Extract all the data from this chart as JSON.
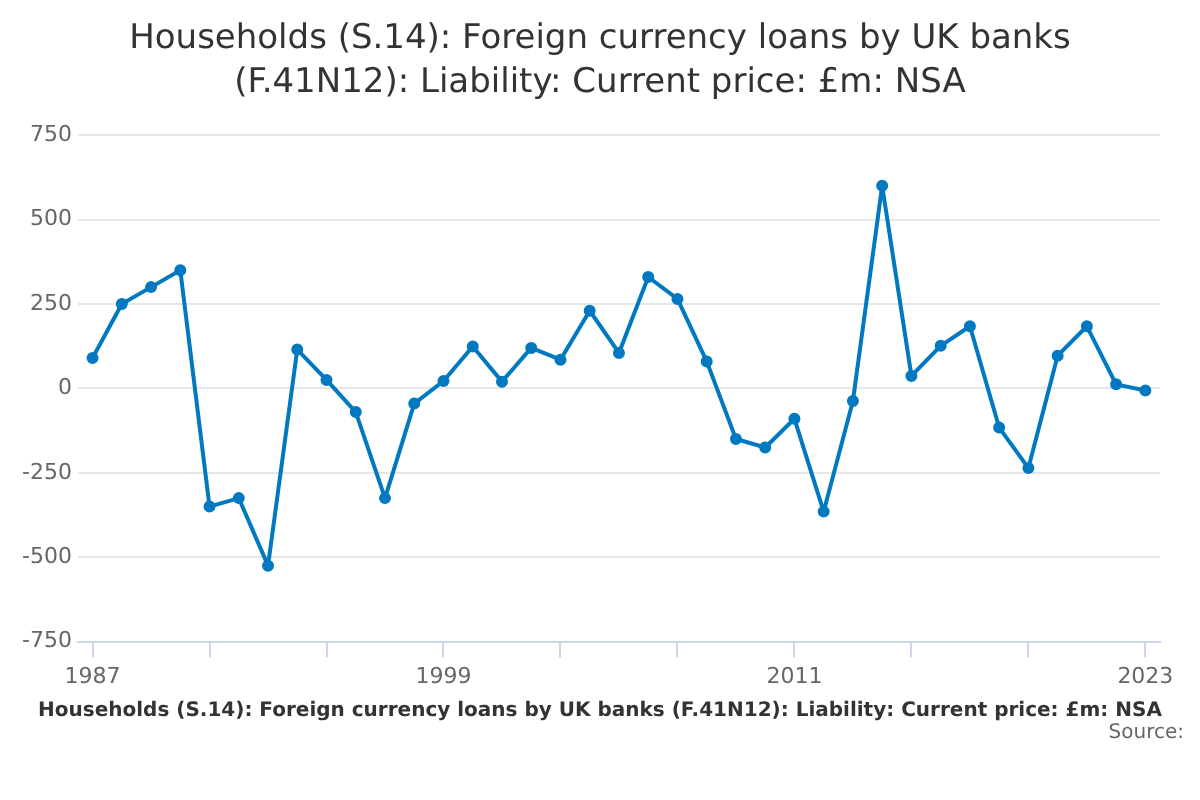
{
  "chart_data": {
    "type": "line",
    "title": "Households (S.14): Foreign currency loans by UK banks (F.41N12): Liability: Current price: £m: NSA",
    "x": [
      1987,
      1988,
      1989,
      1990,
      1991,
      1992,
      1993,
      1994,
      1995,
      1996,
      1997,
      1998,
      1999,
      2000,
      2001,
      2002,
      2003,
      2004,
      2005,
      2006,
      2007,
      2008,
      2009,
      2010,
      2011,
      2012,
      2013,
      2014,
      2015,
      2016,
      2017,
      2018,
      2019,
      2020,
      2021,
      2022,
      2023
    ],
    "series": [
      {
        "color": "#0079c1",
        "values": [
          90,
          250,
          300,
          350,
          -350,
          -325,
          -525,
          115,
          25,
          -70,
          -325,
          -45,
          22,
          124,
          20,
          120,
          85,
          230,
          105,
          330,
          265,
          80,
          -150,
          -175,
          -90,
          -365,
          -37,
          600,
          37,
          126,
          184,
          -116,
          -236,
          97,
          184,
          12,
          -6
        ]
      }
    ],
    "xlim": [
      1986.5,
      2023.5
    ],
    "xticks": [
      1987,
      {
        "value": 1991,
        "label": null
      },
      {
        "value": 1995,
        "label": null
      },
      1999,
      {
        "value": 2003,
        "label": null
      },
      {
        "value": 2007,
        "label": null
      },
      2011,
      {
        "value": 2015,
        "label": null
      },
      {
        "value": 2019,
        "label": null
      },
      2023
    ],
    "ylim": [
      -750,
      750
    ],
    "yticks": [
      -750,
      -500,
      -250,
      0,
      250,
      500,
      750
    ],
    "grid": "y",
    "legend": false,
    "marker": "circle",
    "line_style": "solid",
    "annotations": [
      "Households (S.14): Foreign currency loans by UK banks (F.41N12): Liability: Current price: £m: NSA",
      "Source:"
    ]
  }
}
